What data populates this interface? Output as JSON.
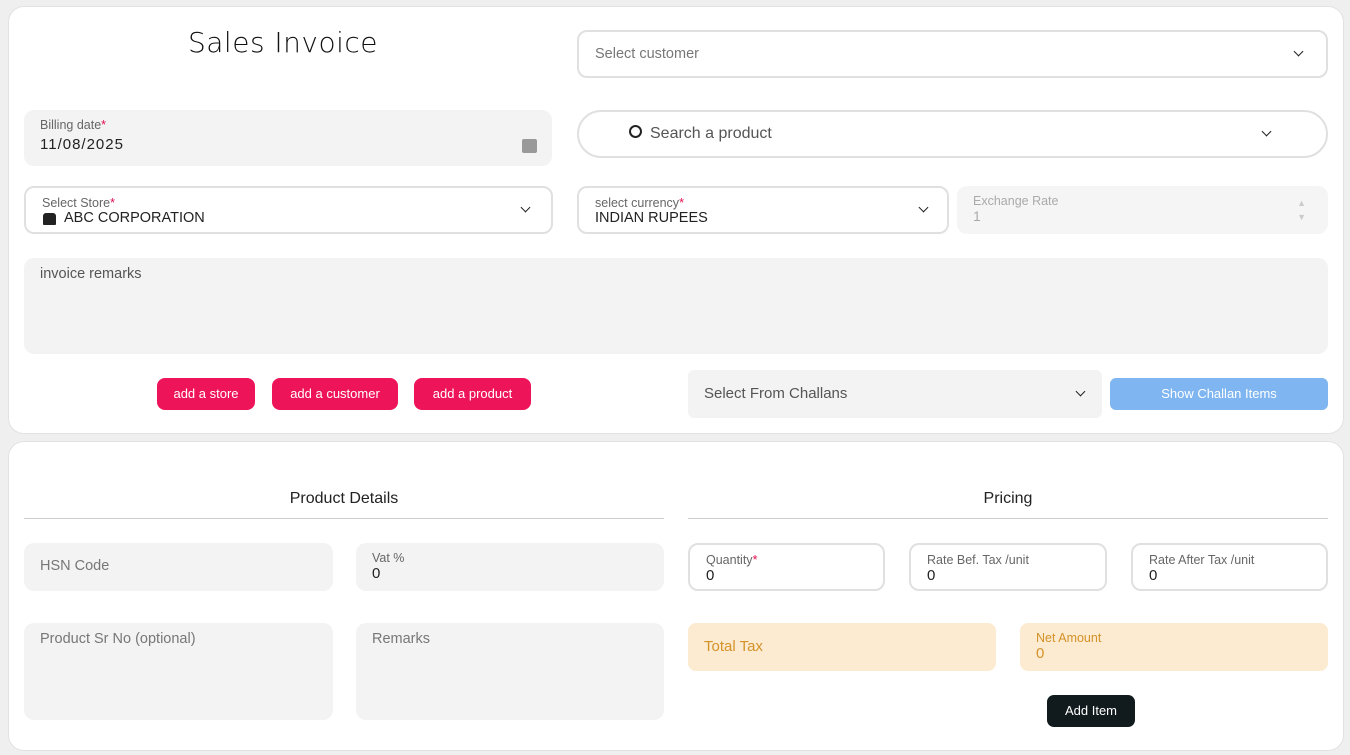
{
  "header": {
    "title": "Sales Invoice"
  },
  "customer": {
    "placeholder": "Select customer"
  },
  "billing_date": {
    "label": "Billing date",
    "required": "*",
    "value": "11/08/2025"
  },
  "product_search": {
    "placeholder": "Search a product"
  },
  "store": {
    "label": "Select Store",
    "required": "*",
    "value": "ABC CORPORATION"
  },
  "currency": {
    "label": "select currency",
    "required": "*",
    "value": "INDIAN RUPEES"
  },
  "exchange_rate": {
    "label": "Exchange Rate",
    "value": "1"
  },
  "remarks": {
    "placeholder": "invoice remarks"
  },
  "buttons": {
    "add_store": "add a store",
    "add_customer": "add a customer",
    "add_product": "add a product",
    "show_challan": "Show Challan Items",
    "add_item": "Add Item"
  },
  "challan": {
    "placeholder": "Select From Challans"
  },
  "product_details": {
    "title": "Product Details",
    "hsn_placeholder": "HSN Code",
    "vat_label": "Vat %",
    "vat_value": "0",
    "sr_placeholder": "Product Sr No (optional)",
    "remarks_placeholder": "Remarks"
  },
  "pricing": {
    "title": "Pricing",
    "quantity_label": "Quantity",
    "quantity_required": "*",
    "quantity_value": "0",
    "rate_bef_label": "Rate Bef. Tax /unit",
    "rate_bef_value": "0",
    "rate_after_label": "Rate After Tax /unit",
    "rate_after_value": "0",
    "total_tax_label": "Total Tax",
    "net_amount_label": "Net Amount",
    "net_amount_value": "0"
  },
  "colors": {
    "accent": "#ee145a",
    "challan_button": "#7fb5f0",
    "summary_bg": "#fcebd0",
    "summary_text": "#d4922a"
  }
}
